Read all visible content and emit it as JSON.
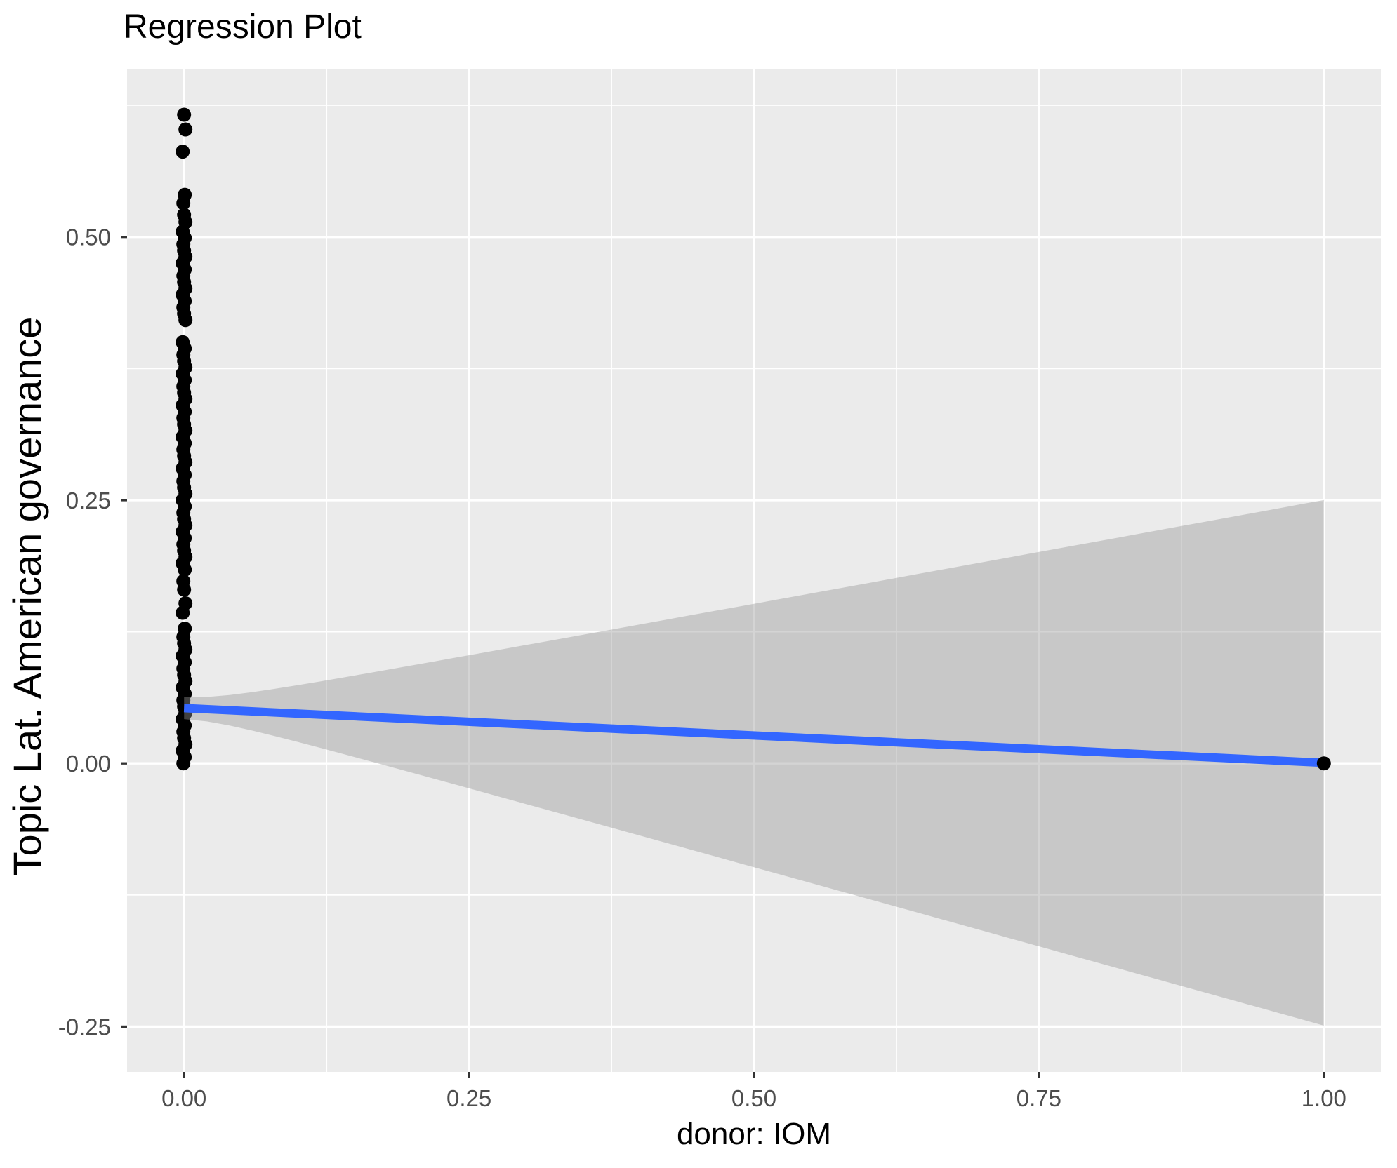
{
  "title": "Regression Plot",
  "chart_data": {
    "type": "scatter",
    "title": "Regression Plot",
    "xlabel": "donor: IOM",
    "ylabel": "Topic Lat. American governance",
    "legend": "none",
    "grid": "on",
    "xlim": [
      -0.05,
      1.05
    ],
    "ylim": [
      -0.293,
      0.659
    ],
    "x_ticks": [
      0.0,
      0.25,
      0.5,
      0.75,
      1.0
    ],
    "x_tick_labels": [
      "0.00",
      "0.25",
      "0.50",
      "0.75",
      "1.00"
    ],
    "y_ticks": [
      -0.25,
      0.0,
      0.25,
      0.5
    ],
    "y_tick_labels": [
      "-0.25",
      "0.00",
      "0.25",
      "0.50"
    ],
    "points": {
      "x0_value": 0.0,
      "x0_y_values": [
        0.616,
        0.602,
        0.581,
        0.54,
        0.532,
        0.521,
        0.514,
        0.505,
        0.499,
        0.493,
        0.487,
        0.481,
        0.475,
        0.469,
        0.463,
        0.457,
        0.451,
        0.445,
        0.439,
        0.433,
        0.427,
        0.421,
        0.4,
        0.394,
        0.388,
        0.382,
        0.376,
        0.37,
        0.364,
        0.358,
        0.352,
        0.346,
        0.34,
        0.334,
        0.328,
        0.322,
        0.316,
        0.31,
        0.304,
        0.298,
        0.292,
        0.286,
        0.28,
        0.274,
        0.268,
        0.262,
        0.256,
        0.25,
        0.244,
        0.238,
        0.232,
        0.226,
        0.22,
        0.214,
        0.208,
        0.202,
        0.196,
        0.19,
        0.184,
        0.173,
        0.165,
        0.152,
        0.143,
        0.128,
        0.12,
        0.114,
        0.108,
        0.102,
        0.096,
        0.09,
        0.084,
        0.078,
        0.072,
        0.066,
        0.06,
        0.054,
        0.048,
        0.042,
        0.036,
        0.03,
        0.024,
        0.018,
        0.012,
        0.006,
        0.0
      ],
      "x1_point": {
        "x": 1.0,
        "y": 0.0
      }
    },
    "regression_line": {
      "x_start": 0.0,
      "y_start": 0.0525,
      "x_end": 1.0,
      "y_end": 0.0005
    },
    "confidence_band": {
      "x_range": [
        0.0,
        1.0
      ],
      "halfwidth_at_x0": 0.0105,
      "halfwidth_at_x1": 0.2495,
      "upper_at_x1": 0.25,
      "lower_at_x1": -0.25
    },
    "colors": {
      "panel_background": "#EBEBEB",
      "grid": "#FFFFFF",
      "points": "#000000",
      "line": "#3366FF",
      "band_fill": "rgba(153,153,153,0.42)",
      "tick_label": "#4D4D4D",
      "tick_mark": "#333333",
      "title_color": "#000000"
    }
  }
}
